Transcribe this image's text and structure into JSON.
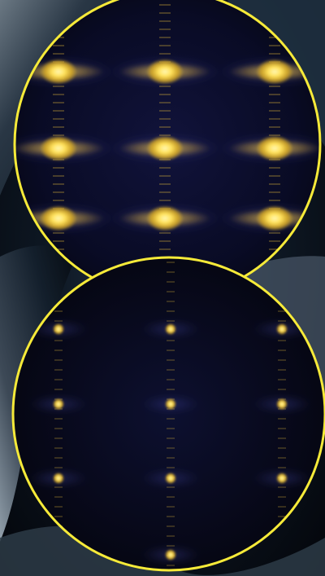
{
  "image": {
    "subject": "two-lens-diffraction-patterns",
    "colors": {
      "frame_outline": "#f6ea39",
      "spot_glow": "#ffd84a",
      "field_background": "#0a0b2a",
      "field_background_alt": "#070812",
      "surround_dark": "#04060b",
      "surround_blue_gray": "#1f2d40",
      "surround_light": "#8fa0af"
    },
    "upper_pattern": {
      "columns": 3,
      "rows": 3,
      "spot_style": "broad-horizontal-streak"
    },
    "lower_pattern": {
      "columns": 3,
      "rows": 4,
      "spot_style": "compact-cross"
    }
  }
}
